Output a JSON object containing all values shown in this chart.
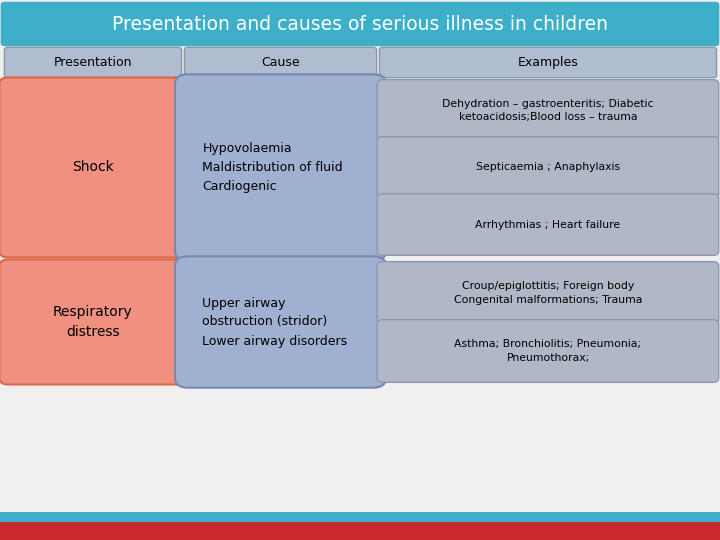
{
  "title": "Presentation and causes of serious illness in children",
  "title_bg": "#3dafc8",
  "title_color": "white",
  "title_fontsize": 13.5,
  "background_color": "#f0f0f0",
  "bottom_bar_red": "#c8282e",
  "bottom_bar_teal": "#3dafc8",
  "col_headers": [
    "Presentation",
    "Cause",
    "Examples"
  ],
  "col_header_bg": "#b0bccf",
  "col_header_border": "#8898aa",
  "presentation_boxes": [
    {
      "label": "Shock",
      "row": 0
    },
    {
      "label": "Respiratory\ndistress",
      "row": 1
    }
  ],
  "presentation_box_bg": "#f09080",
  "presentation_box_border": "#d86848",
  "cause_boxes": [
    {
      "text": "Hypovolaemia\nMaldistribution of fluid\nCardiogenic",
      "row": 0
    },
    {
      "text": "Upper airway\nobstruction (stridor)\nLower airway disorders",
      "row": 1
    }
  ],
  "cause_box_bg": "#a0b0d0",
  "cause_box_border": "#7888b0",
  "example_groups": [
    {
      "boxes": [
        {
          "text": "Dehydration – gastroenteritis; Diabetic\nketoacidosis;Blood loss – trauma"
        },
        {
          "text": "Septicaemia ; Anaphylaxis"
        },
        {
          "text": "Arrhythmias ; Heart failure"
        }
      ],
      "row": 0
    },
    {
      "boxes": [
        {
          "text": "Croup/epiglottitis; Foreign body\nCongenital malformations; Trauma"
        },
        {
          "text": "Asthma; Bronchiolitis; Pneumonia;\nPneumothorax;"
        }
      ],
      "row": 1
    }
  ],
  "example_box_bg": "#b0b8c8",
  "example_box_border": "#8898b0"
}
